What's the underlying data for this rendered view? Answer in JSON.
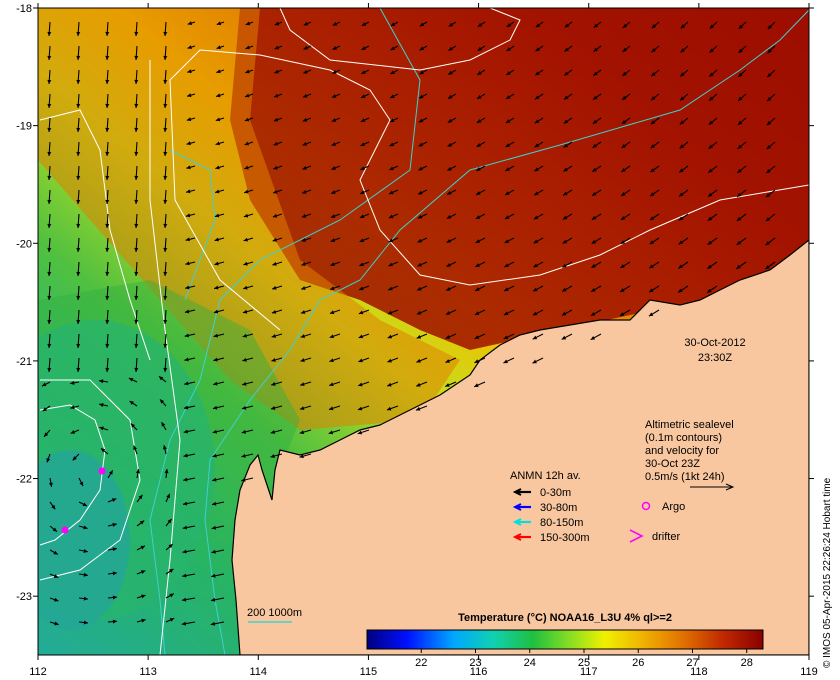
{
  "map": {
    "date": "30-Oct-2012",
    "time": "23:30Z",
    "x_ticks": [
      "112",
      "113",
      "114",
      "115",
      "116",
      "117",
      "118",
      "119"
    ],
    "y_ticks": [
      "-18",
      "-19",
      "-20",
      "-21",
      "-22",
      "-23"
    ],
    "x_range": [
      112,
      119
    ],
    "y_range": [
      -23.5,
      -18
    ]
  },
  "altimetry": {
    "line1": "Altimetric sealevel",
    "line2": "(0.1m contours)",
    "line3": "and velocity for",
    "line4": "30-Oct 23Z",
    "line5": "0.5m/s (1kt 24h)"
  },
  "legend": {
    "title": "ANMN 12h av.",
    "items": [
      {
        "label": "0-30m",
        "color": "#000000"
      },
      {
        "label": "30-80m",
        "color": "#0000ff"
      },
      {
        "label": "80-150m",
        "color": "#00e0e0"
      },
      {
        "label": "150-300m",
        "color": "#ff0000"
      }
    ],
    "argo": "Argo",
    "drifter": "drifter",
    "argo_color": "#ff00ff",
    "drifter_color": "#ff00ff"
  },
  "isobath": {
    "label": "200  1000m",
    "color": "#3fd0d0"
  },
  "colorbar": {
    "title": "Temperature (°C) NOAA16_L3U 4% ql>=2",
    "ticks": [
      "22",
      "23",
      "24",
      "25",
      "26",
      "27",
      "28"
    ],
    "range": [
      21,
      28.3
    ]
  },
  "credit": "© IMOS 05-Apr-2015 22:26:24 Hobart time"
}
